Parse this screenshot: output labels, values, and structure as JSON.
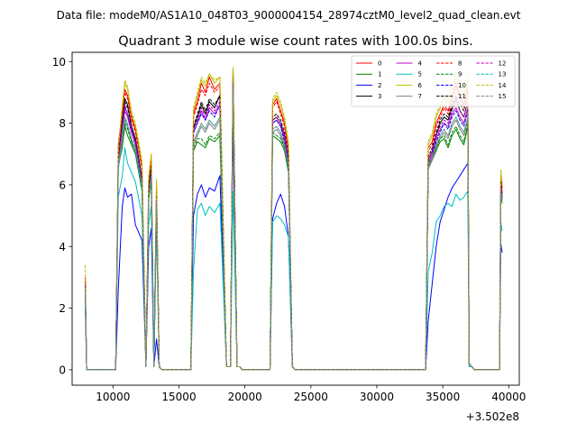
{
  "figure": {
    "suptitle": "Data file: modeM0/AS1A10_048T03_9000004154_28974cztM0_level2_quad_clean.evt"
  },
  "chart_data": {
    "type": "line",
    "title": "Quadrant 3 module wise count rates with 100.0s bins.",
    "xlabel": "",
    "ylabel": "",
    "x_offset_label": "+3.502e8",
    "xlim": [
      6900,
      40800
    ],
    "ylim": [
      -0.5,
      10.3
    ],
    "xticks": [
      10000,
      15000,
      20000,
      25000,
      30000,
      35000,
      40000
    ],
    "yticks": [
      0,
      2,
      4,
      6,
      8,
      10
    ],
    "grid": false,
    "legend_position": "top-right",
    "legend_ncol": 4,
    "x": [
      7900,
      8000,
      10200,
      10400,
      10700,
      10900,
      11100,
      11400,
      11700,
      12200,
      12500,
      12700,
      12900,
      13100,
      13300,
      13500,
      13700,
      13900,
      15900,
      16100,
      16400,
      16700,
      17000,
      17300,
      17700,
      18100,
      18600,
      18900,
      19100,
      19400,
      19600,
      19800,
      21900,
      22100,
      22400,
      22700,
      23000,
      23300,
      23600,
      23800,
      33700,
      33900,
      34200,
      34500,
      34800,
      35100,
      35400,
      35700,
      36000,
      36300,
      36600,
      36900,
      37000,
      37200,
      37400,
      37700,
      39300,
      39400,
      39500
    ],
    "series": [
      {
        "name": "0",
        "color": "#ff0000",
        "style": "solid",
        "values": [
          3.0,
          0,
          0,
          7.3,
          8.4,
          9.1,
          8.9,
          8.2,
          7.8,
          6.6,
          0.1,
          6.1,
          6.9,
          0.1,
          6.0,
          0.1,
          0,
          0,
          0,
          8.3,
          8.7,
          9.3,
          9.0,
          9.5,
          9.1,
          9.3,
          0.1,
          0.1,
          9.8,
          0.1,
          0.1,
          0,
          0,
          8.6,
          8.8,
          8.4,
          8.0,
          7.1,
          0.1,
          0,
          0,
          7.2,
          7.4,
          8.0,
          8.3,
          8.6,
          8.4,
          8.8,
          9.3,
          8.9,
          8.6,
          9.2,
          0.2,
          0.1,
          0,
          0,
          0,
          6.3,
          5.9
        ]
      },
      {
        "name": "1",
        "color": "#008000",
        "style": "solid",
        "values": [
          2.6,
          0,
          0,
          6.6,
          7.2,
          7.9,
          7.6,
          7.3,
          7.0,
          5.8,
          0.1,
          5.5,
          6.1,
          0.1,
          5.3,
          0.1,
          0,
          0,
          0,
          7.1,
          7.4,
          7.3,
          7.2,
          7.5,
          7.4,
          7.6,
          0.1,
          0.1,
          9.0,
          0.1,
          0.1,
          0,
          0,
          7.6,
          7.5,
          7.4,
          7.1,
          6.4,
          0.1,
          0,
          0,
          6.6,
          6.8,
          7.1,
          7.4,
          7.5,
          7.2,
          7.6,
          7.8,
          7.5,
          7.3,
          7.9,
          0.2,
          0.1,
          0,
          0,
          0,
          5.7,
          5.4
        ]
      },
      {
        "name": "2",
        "color": "#0000ff",
        "style": "solid",
        "values": [
          2.0,
          0,
          0,
          2.6,
          5.3,
          5.9,
          5.6,
          5.7,
          4.7,
          4.2,
          0.1,
          4.0,
          4.6,
          0.1,
          1.0,
          0.1,
          0,
          0,
          0,
          5.0,
          5.7,
          6.0,
          5.6,
          5.9,
          5.8,
          6.3,
          0.1,
          0.1,
          7.9,
          0.1,
          0.1,
          0,
          0,
          4.9,
          5.4,
          5.7,
          5.3,
          4.3,
          0.1,
          0,
          0,
          1.6,
          2.8,
          4.0,
          4.8,
          5.2,
          5.6,
          5.9,
          6.1,
          6.3,
          6.5,
          6.7,
          0.1,
          0.1,
          0,
          0,
          0,
          4.1,
          3.8
        ]
      },
      {
        "name": "3",
        "color": "#000000",
        "style": "solid",
        "values": [
          2.8,
          0,
          0,
          6.9,
          8.1,
          8.8,
          8.6,
          7.9,
          7.5,
          6.2,
          0.1,
          5.8,
          6.5,
          0.1,
          5.7,
          0.1,
          0,
          0,
          0,
          7.8,
          8.2,
          8.6,
          8.3,
          8.7,
          8.5,
          8.9,
          0.1,
          0.1,
          9.7,
          0.1,
          0.1,
          0,
          0,
          8.1,
          8.2,
          8.0,
          7.6,
          6.8,
          0.1,
          0,
          0,
          6.8,
          7.1,
          7.6,
          8.0,
          8.2,
          8.1,
          8.5,
          8.8,
          8.4,
          8.2,
          8.7,
          0.2,
          0.1,
          0,
          0,
          0,
          6.0,
          5.6
        ]
      },
      {
        "name": "4",
        "color": "#bf00bf",
        "style": "solid",
        "values": [
          2.7,
          0,
          0,
          6.8,
          7.9,
          8.4,
          8.2,
          7.7,
          7.3,
          6.0,
          0.1,
          5.7,
          6.4,
          0.1,
          5.6,
          0.1,
          0,
          0,
          0,
          7.7,
          8.0,
          8.4,
          8.1,
          8.5,
          8.3,
          8.6,
          0.1,
          0.1,
          9.3,
          0.1,
          0.1,
          0,
          0,
          8.0,
          8.1,
          7.9,
          7.5,
          6.7,
          0.1,
          0,
          0,
          6.7,
          7.0,
          7.5,
          7.8,
          8.0,
          7.9,
          8.3,
          8.5,
          8.2,
          8.0,
          8.5,
          0.2,
          0.1,
          0,
          0,
          0,
          5.9,
          5.5
        ]
      },
      {
        "name": "5",
        "color": "#00bfbf",
        "style": "solid",
        "values": [
          2.2,
          0,
          0,
          5.6,
          6.3,
          7.2,
          6.7,
          6.4,
          6.1,
          5.0,
          0.1,
          4.7,
          5.3,
          0.1,
          4.6,
          0.1,
          0,
          0,
          0,
          3.2,
          5.2,
          5.4,
          5.0,
          5.3,
          5.1,
          5.4,
          0.1,
          0.1,
          5.8,
          0.1,
          0.1,
          0,
          0,
          4.8,
          5.0,
          4.9,
          4.7,
          4.3,
          0.1,
          0,
          0,
          3.2,
          3.8,
          4.8,
          5.0,
          5.3,
          5.4,
          5.3,
          5.7,
          5.5,
          5.6,
          5.8,
          0.1,
          0.1,
          0,
          0,
          0,
          4.8,
          4.5
        ]
      },
      {
        "name": "6",
        "color": "#bfbf00",
        "style": "solid",
        "values": [
          2.9,
          0,
          0,
          7.1,
          8.5,
          9.3,
          9.1,
          8.3,
          7.9,
          6.7,
          0.1,
          6.2,
          7.0,
          0.1,
          6.1,
          0.1,
          0,
          0,
          0,
          8.4,
          8.9,
          9.4,
          9.2,
          9.6,
          9.3,
          9.5,
          0.1,
          0.1,
          9.8,
          0.1,
          0.1,
          0,
          0,
          8.7,
          8.9,
          8.6,
          8.1,
          7.3,
          0.1,
          0,
          0,
          7.3,
          7.6,
          8.2,
          8.5,
          8.8,
          8.6,
          9.0,
          9.5,
          9.1,
          8.8,
          9.4,
          0.2,
          0.1,
          0,
          0,
          0,
          6.4,
          6.0
        ]
      },
      {
        "name": "7",
        "color": "#808080",
        "style": "solid",
        "values": [
          2.5,
          0,
          0,
          6.5,
          7.4,
          8.1,
          7.9,
          7.4,
          7.1,
          5.9,
          0.1,
          5.6,
          6.2,
          0.1,
          5.4,
          0.1,
          0,
          0,
          0,
          7.3,
          7.6,
          7.9,
          7.7,
          8.0,
          7.8,
          8.1,
          0.1,
          0.1,
          9.2,
          0.1,
          0.1,
          0,
          0,
          7.7,
          7.8,
          7.6,
          7.2,
          6.5,
          0.1,
          0,
          0,
          6.5,
          6.8,
          7.2,
          7.5,
          7.7,
          7.5,
          7.9,
          8.1,
          7.8,
          7.6,
          8.1,
          0.2,
          0.1,
          0,
          0,
          0,
          5.8,
          5.5
        ]
      },
      {
        "name": "8",
        "color": "#ff0000",
        "style": "dashed",
        "values": [
          2.9,
          0,
          0,
          7.0,
          8.3,
          9.0,
          8.8,
          8.1,
          7.7,
          6.5,
          0.1,
          6.0,
          6.8,
          0.1,
          5.9,
          0.1,
          0,
          0,
          0,
          8.2,
          8.6,
          9.1,
          8.9,
          9.3,
          9.0,
          9.2,
          0.1,
          0.1,
          9.7,
          0.1,
          0.1,
          0,
          0,
          8.5,
          8.7,
          8.3,
          7.9,
          7.0,
          0.1,
          0,
          0,
          7.1,
          7.3,
          7.9,
          8.2,
          8.5,
          8.3,
          8.7,
          9.2,
          8.8,
          8.5,
          9.1,
          0.2,
          0.1,
          0,
          0,
          0,
          6.2,
          5.8
        ]
      },
      {
        "name": "9",
        "color": "#008000",
        "style": "dashed",
        "values": [
          2.6,
          0,
          0,
          6.7,
          7.5,
          8.0,
          7.8,
          7.4,
          7.1,
          5.9,
          0.1,
          5.6,
          6.2,
          0.1,
          5.4,
          0.1,
          0,
          0,
          0,
          7.2,
          7.5,
          7.5,
          7.3,
          7.6,
          7.5,
          7.7,
          0.1,
          0.1,
          9.1,
          0.1,
          0.1,
          0,
          0,
          7.7,
          7.6,
          7.5,
          7.2,
          6.5,
          0.1,
          0,
          0,
          6.7,
          6.9,
          7.2,
          7.5,
          7.6,
          7.3,
          7.7,
          7.9,
          7.6,
          7.4,
          8.0,
          0.2,
          0.1,
          0,
          0,
          0,
          5.8,
          5.5
        ]
      },
      {
        "name": "10",
        "color": "#0000ff",
        "style": "dashed",
        "values": [
          2.7,
          0,
          0,
          6.8,
          7.8,
          8.5,
          8.3,
          7.8,
          7.4,
          6.1,
          0.1,
          5.7,
          6.4,
          0.1,
          5.6,
          0.1,
          0,
          0,
          0,
          7.7,
          8.0,
          8.3,
          8.1,
          8.4,
          8.2,
          8.6,
          0.1,
          0.1,
          9.4,
          0.1,
          0.1,
          0,
          0,
          8.0,
          8.1,
          7.9,
          7.4,
          6.6,
          0.1,
          0,
          0,
          6.6,
          6.9,
          7.4,
          7.7,
          8.0,
          7.8,
          8.2,
          8.4,
          8.1,
          7.9,
          8.4,
          0.2,
          0.1,
          0,
          0,
          0,
          5.9,
          5.5
        ]
      },
      {
        "name": "11",
        "color": "#000000",
        "style": "dashed",
        "values": [
          2.8,
          0,
          0,
          6.9,
          8.0,
          8.7,
          8.5,
          7.9,
          7.5,
          6.2,
          0.1,
          5.8,
          6.6,
          0.1,
          5.7,
          0.1,
          0,
          0,
          0,
          7.9,
          8.3,
          8.7,
          8.4,
          8.8,
          8.6,
          8.9,
          0.1,
          0.1,
          9.6,
          0.1,
          0.1,
          0,
          0,
          8.2,
          8.3,
          8.1,
          7.7,
          6.9,
          0.1,
          0,
          0,
          6.9,
          7.2,
          7.7,
          8.1,
          8.3,
          8.2,
          8.6,
          8.9,
          8.6,
          8.4,
          9.0,
          0.2,
          0.1,
          0,
          0,
          0,
          6.1,
          5.7
        ]
      },
      {
        "name": "12",
        "color": "#bf00bf",
        "style": "dashed",
        "values": [
          2.7,
          0,
          0,
          6.8,
          7.9,
          8.6,
          8.3,
          7.8,
          7.4,
          6.1,
          0.1,
          5.7,
          6.4,
          0.1,
          5.6,
          0.1,
          0,
          0,
          0,
          7.8,
          8.1,
          8.5,
          8.2,
          8.6,
          8.4,
          8.7,
          0.1,
          0.1,
          9.4,
          0.1,
          0.1,
          0,
          0,
          8.1,
          8.2,
          8.0,
          7.6,
          6.8,
          0.1,
          0,
          0,
          6.8,
          7.1,
          7.6,
          7.9,
          8.1,
          8.0,
          8.4,
          8.7,
          8.4,
          8.2,
          8.7,
          0.2,
          0.1,
          0,
          0,
          0,
          6.0,
          5.6
        ]
      },
      {
        "name": "13",
        "color": "#00bfbf",
        "style": "dashed",
        "values": [
          2.6,
          0,
          0,
          6.6,
          7.5,
          8.2,
          7.9,
          7.5,
          7.1,
          5.9,
          0.1,
          5.6,
          6.3,
          0.1,
          5.5,
          0.1,
          0,
          0,
          0,
          7.4,
          7.7,
          8.0,
          7.8,
          8.1,
          7.9,
          8.2,
          0.1,
          0.1,
          9.2,
          0.1,
          0.1,
          0,
          0,
          7.8,
          7.9,
          7.7,
          7.3,
          6.6,
          0.1,
          0,
          0,
          6.6,
          6.9,
          7.3,
          7.6,
          7.8,
          7.6,
          8.0,
          8.2,
          7.9,
          7.7,
          8.2,
          0.2,
          0.1,
          0,
          0,
          0,
          5.8,
          5.5
        ]
      },
      {
        "name": "14",
        "color": "#bfbf00",
        "style": "dashed",
        "values": [
          3.4,
          0,
          0,
          7.1,
          8.6,
          9.4,
          9.2,
          8.4,
          8.0,
          6.8,
          0.1,
          6.3,
          7.0,
          0.1,
          6.2,
          0.1,
          0,
          0,
          0,
          8.5,
          9.0,
          9.5,
          9.3,
          9.6,
          9.4,
          9.5,
          0.1,
          0.1,
          9.8,
          0.1,
          0.1,
          0,
          0,
          8.8,
          9.0,
          8.7,
          8.2,
          7.4,
          0.1,
          0,
          0,
          7.4,
          7.7,
          8.3,
          8.6,
          8.9,
          8.7,
          9.2,
          9.7,
          9.3,
          8.9,
          9.5,
          0.2,
          0.1,
          0,
          0,
          0,
          6.5,
          6.1
        ]
      },
      {
        "name": "15",
        "color": "#808080",
        "style": "dashed",
        "values": [
          2.5,
          0,
          0,
          6.6,
          7.6,
          8.2,
          8.0,
          7.5,
          7.2,
          6.0,
          0.1,
          5.6,
          6.3,
          0.1,
          5.5,
          0.1,
          0,
          0,
          0,
          7.4,
          7.7,
          8.0,
          7.8,
          8.1,
          7.9,
          8.2,
          0.1,
          0.1,
          9.3,
          0.1,
          0.1,
          0,
          0,
          7.8,
          7.9,
          7.7,
          7.3,
          6.6,
          0.1,
          0,
          0,
          6.6,
          6.9,
          7.3,
          7.6,
          7.8,
          7.6,
          8.0,
          8.2,
          7.9,
          7.7,
          8.2,
          0.2,
          0.1,
          0,
          0,
          0,
          5.8,
          5.5
        ]
      }
    ]
  }
}
